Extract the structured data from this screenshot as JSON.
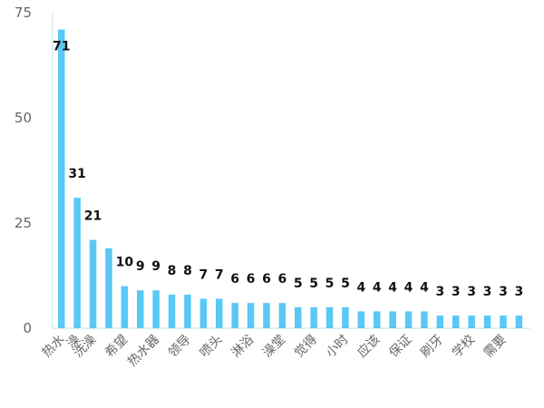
{
  "chart_data": {
    "type": "bar",
    "categories": [
      "热水",
      "澡",
      "洗澡",
      "",
      "希望",
      "",
      "热水器",
      "",
      "领导",
      "",
      "喷头",
      "",
      "淋浴",
      "",
      "澡堂",
      "",
      "觉得",
      "",
      "小时",
      "",
      "应该",
      "",
      "保证",
      "",
      "刷牙",
      "",
      "学校",
      "",
      "需要",
      ""
    ],
    "values": [
      71,
      31,
      21,
      19,
      10,
      9,
      9,
      8,
      8,
      7,
      7,
      6,
      6,
      6,
      6,
      5,
      5,
      5,
      5,
      4,
      4,
      4,
      4,
      4,
      3,
      3,
      3,
      3,
      3,
      3
    ],
    "data_labels": [
      "71",
      "31",
      "21",
      "",
      "10",
      "9",
      "9",
      "8",
      "8",
      "7",
      "7",
      "6",
      "6",
      "6",
      "6",
      "5",
      "5",
      "5",
      "5",
      "4",
      "4",
      "4",
      "4",
      "4",
      "3",
      "3",
      "3",
      "3",
      "3",
      "3"
    ],
    "y_ticks": [
      "0",
      "25",
      "50",
      "75"
    ],
    "ylim": [
      0,
      75
    ],
    "grid": false,
    "legend": "none",
    "title": "",
    "xlabel": "",
    "ylabel": ""
  },
  "colors": {
    "bar": "#5AC8F5",
    "axis": "#C8DCE8",
    "label": "#666666"
  }
}
